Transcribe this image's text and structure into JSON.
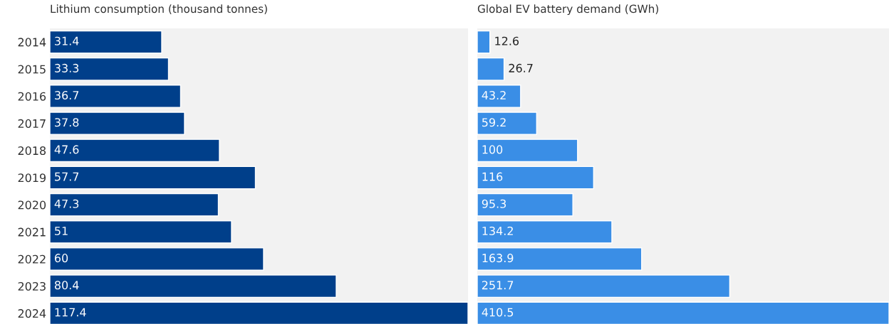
{
  "chart_data": [
    {
      "type": "bar",
      "orientation": "horizontal",
      "title": "Lithium consumption (thousand tonnes)",
      "categories": [
        "2014",
        "2015",
        "2016",
        "2017",
        "2018",
        "2019",
        "2020",
        "2021",
        "2022",
        "2023",
        "2024"
      ],
      "values": [
        31.4,
        33.3,
        36.7,
        37.8,
        47.6,
        57.7,
        47.3,
        51,
        60,
        80.4,
        117.4
      ],
      "color": "#003f8a",
      "xlim": [
        0,
        117.4
      ],
      "data_labels": true,
      "tick_labels": "y"
    },
    {
      "type": "bar",
      "orientation": "horizontal",
      "title": "Global EV battery demand (GWh)",
      "categories": [
        "2014",
        "2015",
        "2016",
        "2017",
        "2018",
        "2019",
        "2020",
        "2021",
        "2022",
        "2023",
        "2024"
      ],
      "values": [
        12.6,
        26.7,
        43.2,
        59.2,
        100,
        116,
        95.3,
        134.2,
        163.9,
        251.7,
        410.5
      ],
      "color": "#3a8ee6",
      "xlim": [
        0,
        410.5
      ],
      "data_labels": true,
      "tick_labels": false
    }
  ]
}
